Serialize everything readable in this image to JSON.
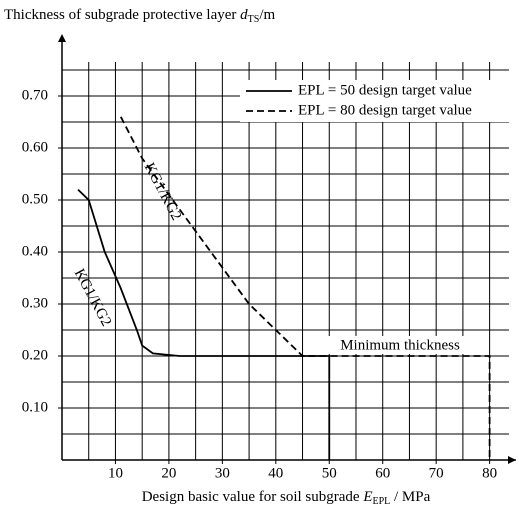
{
  "chart_data": {
    "type": "line",
    "y_label": [
      "Thickness of subgrade protective layer ",
      "d",
      "TS",
      "/m"
    ],
    "x_label": [
      "Design basic value for soil subgrade ",
      "E",
      "EPL",
      " / MPa"
    ],
    "series": [
      {
        "name": "EPL = 50 design target value",
        "color": "#000000",
        "dash": false,
        "x": [
          3,
          5,
          8,
          11,
          14,
          15,
          17,
          22,
          30,
          50,
          50
        ],
        "values": [
          0.52,
          0.5,
          0.4,
          0.33,
          0.25,
          0.22,
          0.205,
          0.2,
          0.2,
          0.2,
          0
        ]
      },
      {
        "name": "EPL = 80 design target value",
        "color": "#000000",
        "dash": true,
        "x": [
          11,
          15,
          25,
          35,
          45,
          80,
          80
        ],
        "values": [
          0.66,
          0.58,
          0.44,
          0.3,
          0.2,
          0.2,
          0
        ]
      }
    ],
    "annotations": [
      "KG1/KG2",
      "KG1/KG2",
      "Minimum thickness"
    ],
    "xlim": [
      0,
      84
    ],
    "ylim": [
      0,
      0.8
    ],
    "xticks": [
      10,
      20,
      30,
      40,
      50,
      60,
      70,
      80
    ],
    "yticks": [
      {
        "value": 0.1,
        "label": "0.10"
      },
      {
        "value": 0.2,
        "label": "0.20"
      },
      {
        "value": 0.3,
        "label": "0.30"
      },
      {
        "value": 0.4,
        "label": "0.40"
      },
      {
        "value": 0.5,
        "label": "0.50"
      },
      {
        "value": 0.6,
        "label": "0.60"
      },
      {
        "value": 0.7,
        "label": "0.70"
      }
    ],
    "xgrid": [
      5,
      10,
      15,
      20,
      25,
      30,
      35,
      40,
      45,
      50,
      55,
      60,
      65,
      70,
      75,
      80
    ],
    "ygrid": [
      0.05,
      0.1,
      0.15,
      0.2,
      0.25,
      0.3,
      0.35,
      0.4,
      0.45,
      0.5,
      0.55,
      0.6,
      0.65,
      0.7,
      0.75
    ],
    "legend": "upper right",
    "grid": true
  }
}
